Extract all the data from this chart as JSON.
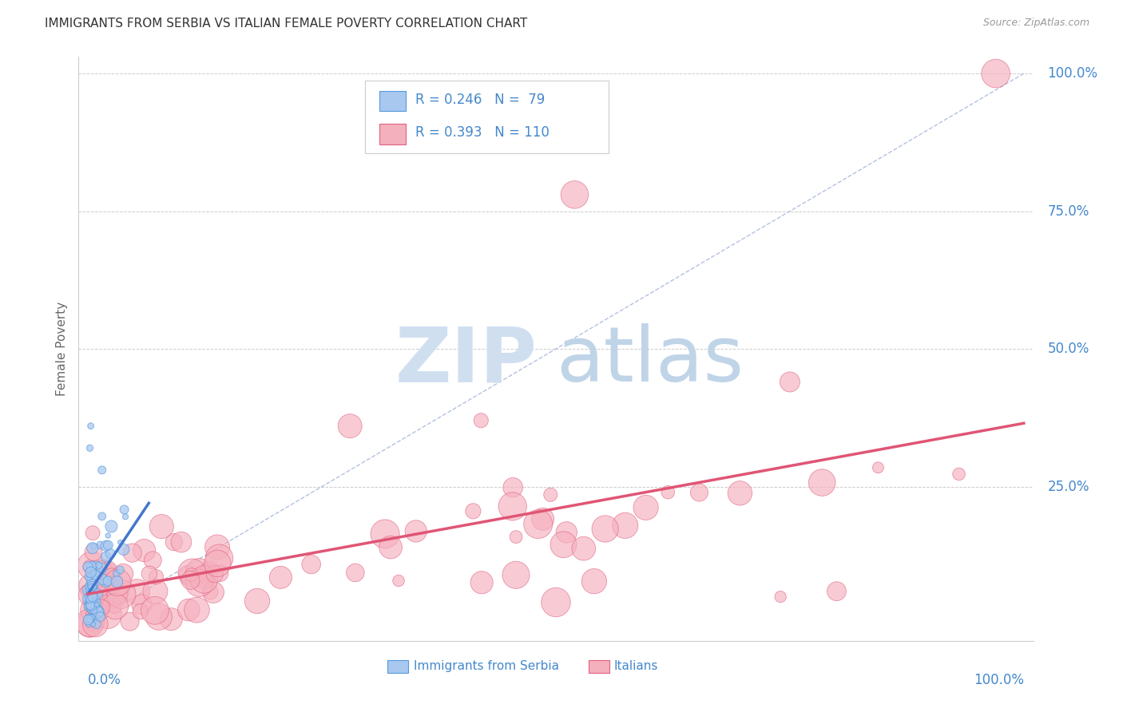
{
  "title": "IMMIGRANTS FROM SERBIA VS ITALIAN FEMALE POVERTY CORRELATION CHART",
  "source": "Source: ZipAtlas.com",
  "ylabel": "Female Poverty",
  "serbia_color": "#a8c8f0",
  "serbia_color_dark": "#5599dd",
  "italian_color": "#f5b0be",
  "italian_color_dark": "#e06080",
  "watermark_zip_color": "#d0dff0",
  "watermark_atlas_color": "#c0d4e8",
  "background_color": "#ffffff",
  "grid_color": "#cccccc",
  "axis_label_color": "#4488cc",
  "title_color": "#333333",
  "diagonal_color": "#aabbdd",
  "serbia_trend_color": "#4477cc",
  "italian_trend_color": "#e05575"
}
